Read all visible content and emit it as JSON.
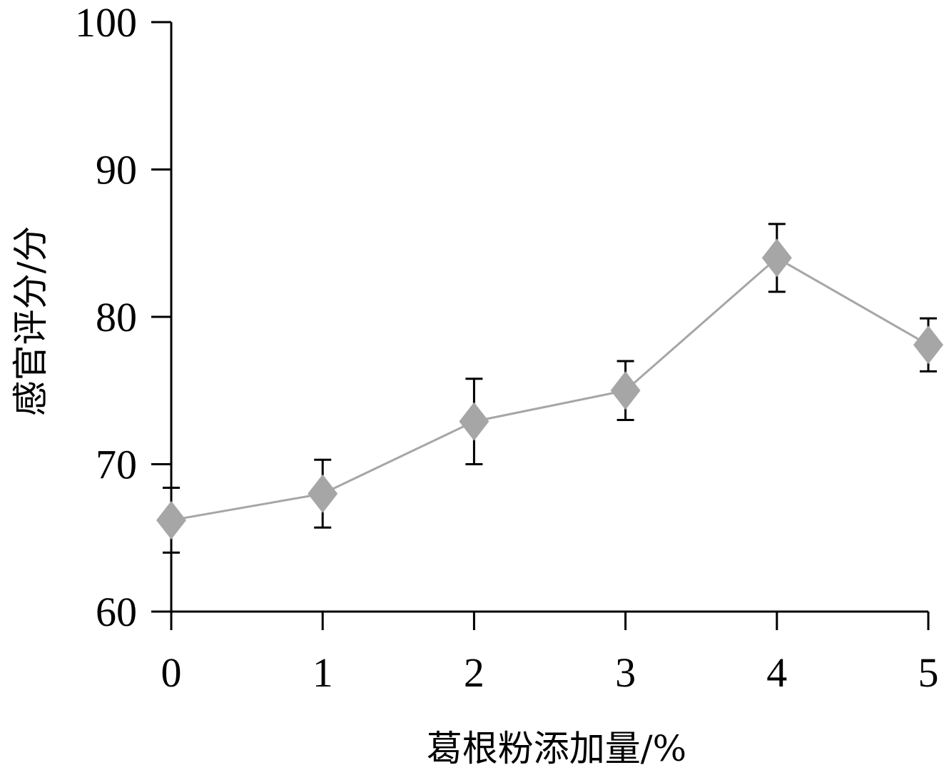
{
  "chart_data": {
    "type": "line",
    "xlabel": "葛根粉添加量/%",
    "ylabel": "感官评分/分",
    "x": [
      0,
      1,
      2,
      3,
      4,
      5
    ],
    "xlim": [
      0,
      5
    ],
    "ylim": [
      60,
      100
    ],
    "x_ticks": [
      0,
      1,
      2,
      3,
      4,
      5
    ],
    "y_ticks": [
      60,
      70,
      80,
      90,
      100
    ],
    "grid": false,
    "series": [
      {
        "values": [
          66.2,
          68.0,
          72.9,
          75.0,
          84.0,
          78.1
        ],
        "errors": [
          2.2,
          2.3,
          2.9,
          2.0,
          2.3,
          1.8
        ],
        "color": "#a6a6a6",
        "marker": "diamond"
      }
    ]
  }
}
